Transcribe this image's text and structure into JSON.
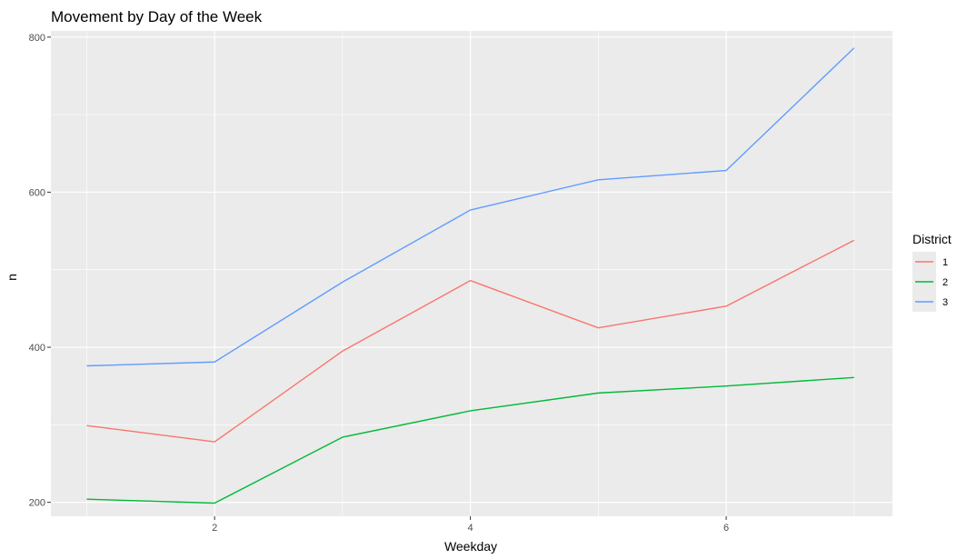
{
  "chart_data": {
    "type": "line",
    "title": "Movement by Day of the Week",
    "xlabel": "Weekday",
    "ylabel": "n",
    "x": [
      1,
      2,
      3,
      4,
      5,
      6,
      7
    ],
    "xlim": [
      0.72,
      7.3
    ],
    "ylim": [
      182,
      808
    ],
    "x_ticks": [
      2,
      4,
      6
    ],
    "x_minor_ticks": [
      1,
      3,
      5,
      7
    ],
    "y_ticks": [
      200,
      400,
      600,
      800
    ],
    "y_minor_ticks": [
      300,
      500,
      700
    ],
    "grid": true,
    "legend": {
      "title": "District",
      "position": "right"
    },
    "series": [
      {
        "name": "1",
        "color": "#F8766D",
        "values": [
          299,
          278,
          395,
          486,
          425,
          453,
          538
        ]
      },
      {
        "name": "2",
        "color": "#00BA38",
        "values": [
          204,
          199,
          284,
          318,
          341,
          350,
          361
        ]
      },
      {
        "name": "3",
        "color": "#619CFF",
        "values": [
          376,
          381,
          484,
          577,
          616,
          628,
          786
        ]
      }
    ]
  },
  "colors": {
    "panel_background": "#EBEBEB",
    "grid_major": "#FFFFFF",
    "legend_key_background": "#EBEBEB"
  }
}
